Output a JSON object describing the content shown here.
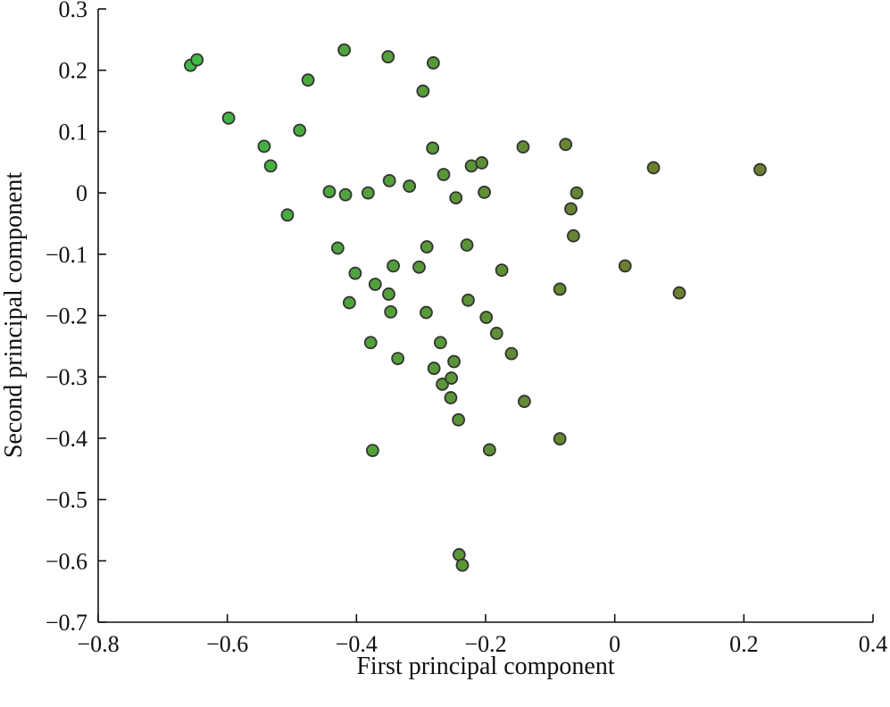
{
  "chart_data": {
    "type": "scatter",
    "xlabel": "First principal component",
    "ylabel": "Second principal component",
    "xlim": [
      -0.8,
      0.4
    ],
    "ylim": [
      -0.7,
      0.3
    ],
    "xticks": [
      -0.8,
      -0.6,
      -0.4,
      -0.2,
      0,
      0.2,
      0.4
    ],
    "xtick_labels": [
      "−0.8",
      "−0.6",
      "−0.4",
      "−0.2",
      "0",
      "0.2",
      "0.4"
    ],
    "yticks": [
      0.3,
      0.2,
      0.1,
      0,
      -0.1,
      -0.2,
      -0.3,
      -0.4,
      -0.5,
      -0.6,
      -0.7
    ],
    "ytick_labels": [
      "0.3",
      "0.2",
      "0.1",
      "0",
      "−0.1",
      "−0.2",
      "−0.3",
      "−0.4",
      "−0.5",
      "−0.6",
      "−0.7"
    ],
    "grid": false,
    "colors": {
      "color_low_x": "#3fba46",
      "color_high_x": "#6b7f2e",
      "edge": "#333333"
    },
    "points": [
      {
        "x": -0.657,
        "y": 0.208
      },
      {
        "x": -0.647,
        "y": 0.217
      },
      {
        "x": -0.598,
        "y": 0.122
      },
      {
        "x": -0.543,
        "y": 0.076
      },
      {
        "x": -0.533,
        "y": 0.044
      },
      {
        "x": -0.488,
        "y": 0.102
      },
      {
        "x": -0.507,
        "y": -0.036
      },
      {
        "x": -0.475,
        "y": 0.184
      },
      {
        "x": -0.419,
        "y": 0.233
      },
      {
        "x": -0.351,
        "y": 0.222
      },
      {
        "x": -0.281,
        "y": 0.212
      },
      {
        "x": -0.297,
        "y": 0.166
      },
      {
        "x": -0.282,
        "y": 0.073
      },
      {
        "x": -0.442,
        "y": 0.002
      },
      {
        "x": -0.417,
        "y": -0.003
      },
      {
        "x": -0.382,
        "y": 0.0
      },
      {
        "x": -0.349,
        "y": 0.02
      },
      {
        "x": -0.318,
        "y": 0.011
      },
      {
        "x": -0.265,
        "y": 0.03
      },
      {
        "x": -0.246,
        "y": -0.008
      },
      {
        "x": -0.222,
        "y": 0.044
      },
      {
        "x": -0.206,
        "y": 0.049
      },
      {
        "x": -0.202,
        "y": 0.001
      },
      {
        "x": -0.142,
        "y": 0.075
      },
      {
        "x": -0.076,
        "y": 0.079
      },
      {
        "x": -0.059,
        "y": 0.0
      },
      {
        "x": -0.068,
        "y": -0.026
      },
      {
        "x": -0.064,
        "y": -0.07
      },
      {
        "x": 0.06,
        "y": 0.041
      },
      {
        "x": 0.225,
        "y": 0.038
      },
      {
        "x": -0.429,
        "y": -0.09
      },
      {
        "x": -0.402,
        "y": -0.131
      },
      {
        "x": -0.411,
        "y": -0.179
      },
      {
        "x": -0.371,
        "y": -0.149
      },
      {
        "x": -0.343,
        "y": -0.119
      },
      {
        "x": -0.35,
        "y": -0.165
      },
      {
        "x": -0.347,
        "y": -0.194
      },
      {
        "x": -0.303,
        "y": -0.121
      },
      {
        "x": -0.291,
        "y": -0.088
      },
      {
        "x": -0.229,
        "y": -0.085
      },
      {
        "x": -0.292,
        "y": -0.195
      },
      {
        "x": -0.227,
        "y": -0.175
      },
      {
        "x": -0.175,
        "y": -0.126
      },
      {
        "x": -0.199,
        "y": -0.203
      },
      {
        "x": -0.183,
        "y": -0.229
      },
      {
        "x": -0.16,
        "y": -0.262
      },
      {
        "x": -0.085,
        "y": -0.157
      },
      {
        "x": 0.016,
        "y": -0.119
      },
      {
        "x": 0.1,
        "y": -0.163
      },
      {
        "x": -0.378,
        "y": -0.244
      },
      {
        "x": -0.336,
        "y": -0.27
      },
      {
        "x": -0.27,
        "y": -0.244
      },
      {
        "x": -0.28,
        "y": -0.286
      },
      {
        "x": -0.249,
        "y": -0.275
      },
      {
        "x": -0.267,
        "y": -0.312
      },
      {
        "x": -0.253,
        "y": -0.302
      },
      {
        "x": -0.254,
        "y": -0.334
      },
      {
        "x": -0.242,
        "y": -0.37
      },
      {
        "x": -0.14,
        "y": -0.34
      },
      {
        "x": -0.085,
        "y": -0.401
      },
      {
        "x": -0.375,
        "y": -0.42
      },
      {
        "x": -0.194,
        "y": -0.419
      },
      {
        "x": -0.241,
        "y": -0.59
      },
      {
        "x": -0.236,
        "y": -0.607
      }
    ]
  }
}
